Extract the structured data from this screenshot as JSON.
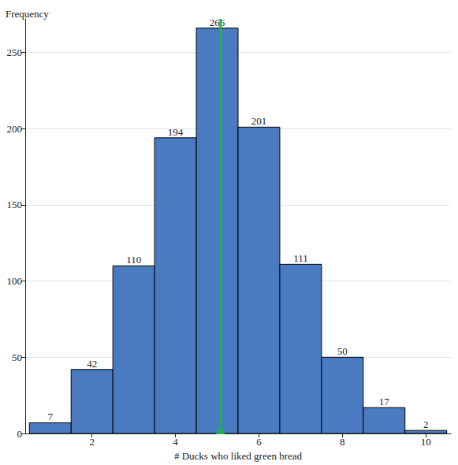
{
  "chart_data": {
    "type": "histogram",
    "x_label": "# Ducks who liked green bread",
    "y_label": "Frequency",
    "bins": [
      0.5,
      1.5,
      2.5,
      3.5,
      4.5,
      5.5,
      6.5,
      7.5,
      8.5,
      9.5,
      10.5
    ],
    "values": [
      7,
      42,
      110,
      194,
      266,
      201,
      111,
      50,
      17,
      2
    ],
    "color": "#4a7bc0",
    "xlim": [
      0.4,
      10.6
    ],
    "xticks": [
      2,
      4,
      6,
      8,
      10
    ],
    "ylim": [
      0,
      272
    ],
    "yticks": [
      0,
      50,
      100,
      150,
      200,
      250
    ],
    "grid": true,
    "data_labels": true,
    "reference_line": 5.08
  }
}
